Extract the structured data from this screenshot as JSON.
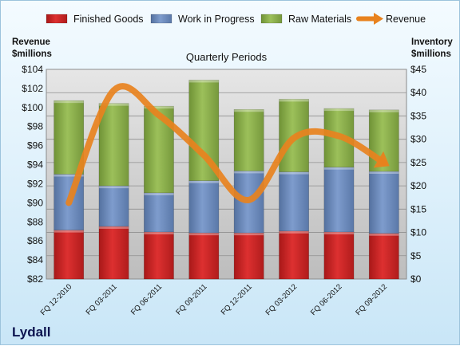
{
  "brand": "Lydall",
  "chart_data": {
    "type": "bar",
    "subtitle": "Quarterly Periods",
    "left_axis_title": [
      "Revenue",
      "$millions"
    ],
    "right_axis_title": [
      "Inventory",
      "$millions"
    ],
    "categories": [
      "FQ 12-2010",
      "FQ 03-2011",
      "FQ 06-2011",
      "FQ 09-2011",
      "FQ 12-2011",
      "FQ 03-2012",
      "FQ 06-2012",
      "FQ 09-2012"
    ],
    "series": [
      {
        "name": "Finished Goods",
        "axis": "right",
        "kind": "stacked-bar",
        "color": "#cc2222",
        "values": [
          10.5,
          11.3,
          10.1,
          9.9,
          9.9,
          10.3,
          10.1,
          9.8
        ]
      },
      {
        "name": "Work in Progress",
        "axis": "right",
        "kind": "stacked-bar",
        "color": "#6a8cc0",
        "values": [
          12.0,
          8.7,
          8.4,
          11.2,
          13.3,
          12.7,
          13.9,
          13.3
        ]
      },
      {
        "name": "Raw Materials",
        "axis": "right",
        "kind": "stacked-bar",
        "color": "#8db04e",
        "values": [
          15.8,
          17.7,
          18.6,
          21.6,
          13.2,
          15.6,
          12.6,
          13.2
        ]
      },
      {
        "name": "Revenue",
        "axis": "left",
        "kind": "arrow-line",
        "color": "#e8821e",
        "values": [
          90.0,
          101.8,
          99.2,
          95.0,
          90.3,
          96.8,
          97.0,
          94.2
        ]
      }
    ],
    "left_axis": {
      "min": 82,
      "max": 104,
      "step": 2,
      "tick_prefix": "$"
    },
    "right_axis": {
      "min": 0,
      "max": 45,
      "step": 5,
      "tick_prefix": "$"
    },
    "grid": true,
    "legend_position": "top"
  }
}
